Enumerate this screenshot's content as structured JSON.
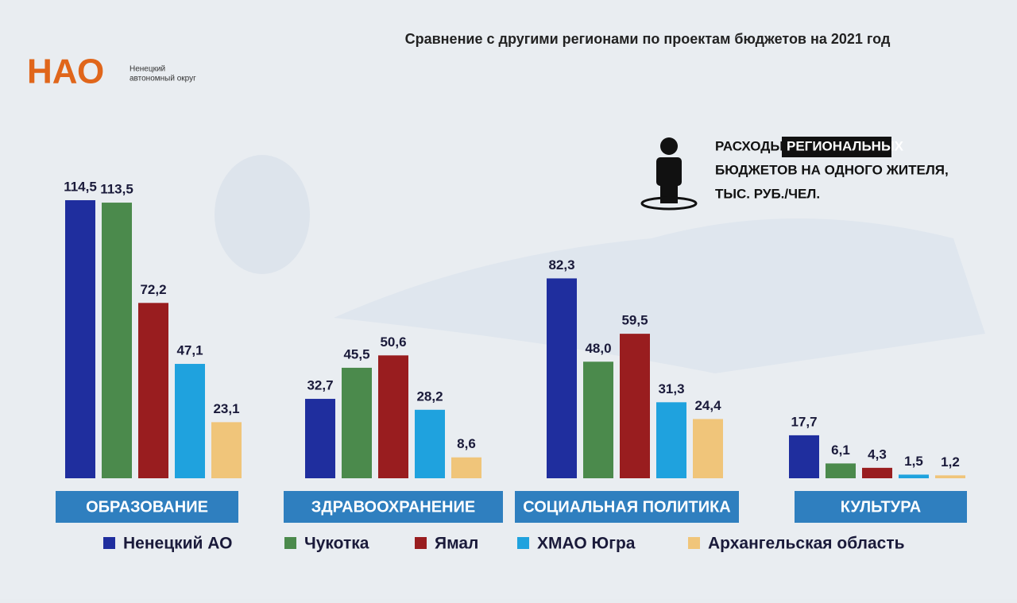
{
  "chart_data": {
    "type": "bar",
    "title": "Сравнение с другими регионами по проектам бюджетов на 2021 год",
    "logo": {
      "mark": "НАО",
      "caption": [
        "Ненецкий",
        "автономный округ"
      ]
    },
    "annotation": [
      "РАСХОДЫ",
      "РЕГИОНАЛЬНЫХ",
      "БЮДЖЕТОВ НА ОДНОГО ЖИТЕЛЯ,",
      "ТЫС. РУБ./ЧЕЛ."
    ],
    "categories": [
      "ОБРАЗОВАНИЕ",
      "ЗДРАВООХРАНЕНИЕ",
      "СОЦИАЛЬНАЯ ПОЛИТИКА",
      "КУЛЬТУРА"
    ],
    "series": [
      {
        "name": "Ненецкий АО",
        "color": "#1f2e9e",
        "values": [
          114.5,
          32.7,
          82.3,
          17.7
        ],
        "value_labels": [
          "114,5",
          "32,7",
          "82,3",
          "17,7"
        ]
      },
      {
        "name": "Чукотка",
        "color": "#4b8a4c",
        "values": [
          113.5,
          45.5,
          48.0,
          6.1
        ],
        "value_labels": [
          "113,5",
          "45,5",
          "48,0",
          "6,1"
        ]
      },
      {
        "name": "Ямал",
        "color": "#991d1f",
        "values": [
          72.2,
          50.6,
          59.5,
          4.3
        ],
        "value_labels": [
          "72,2",
          "50,6",
          "59,5",
          "4,3"
        ]
      },
      {
        "name": "ХМАО Югра",
        "color": "#1fa2de",
        "values": [
          47.1,
          28.2,
          31.3,
          1.5
        ],
        "value_labels": [
          "47,1",
          "28,2",
          "31,3",
          "1,5"
        ]
      },
      {
        "name": "Архангельская область",
        "color": "#f0c57a",
        "values": [
          23.1,
          8.6,
          24.4,
          1.2
        ],
        "value_labels": [
          "23,1",
          "8,6",
          "24,4",
          "1,2"
        ]
      }
    ]
  }
}
